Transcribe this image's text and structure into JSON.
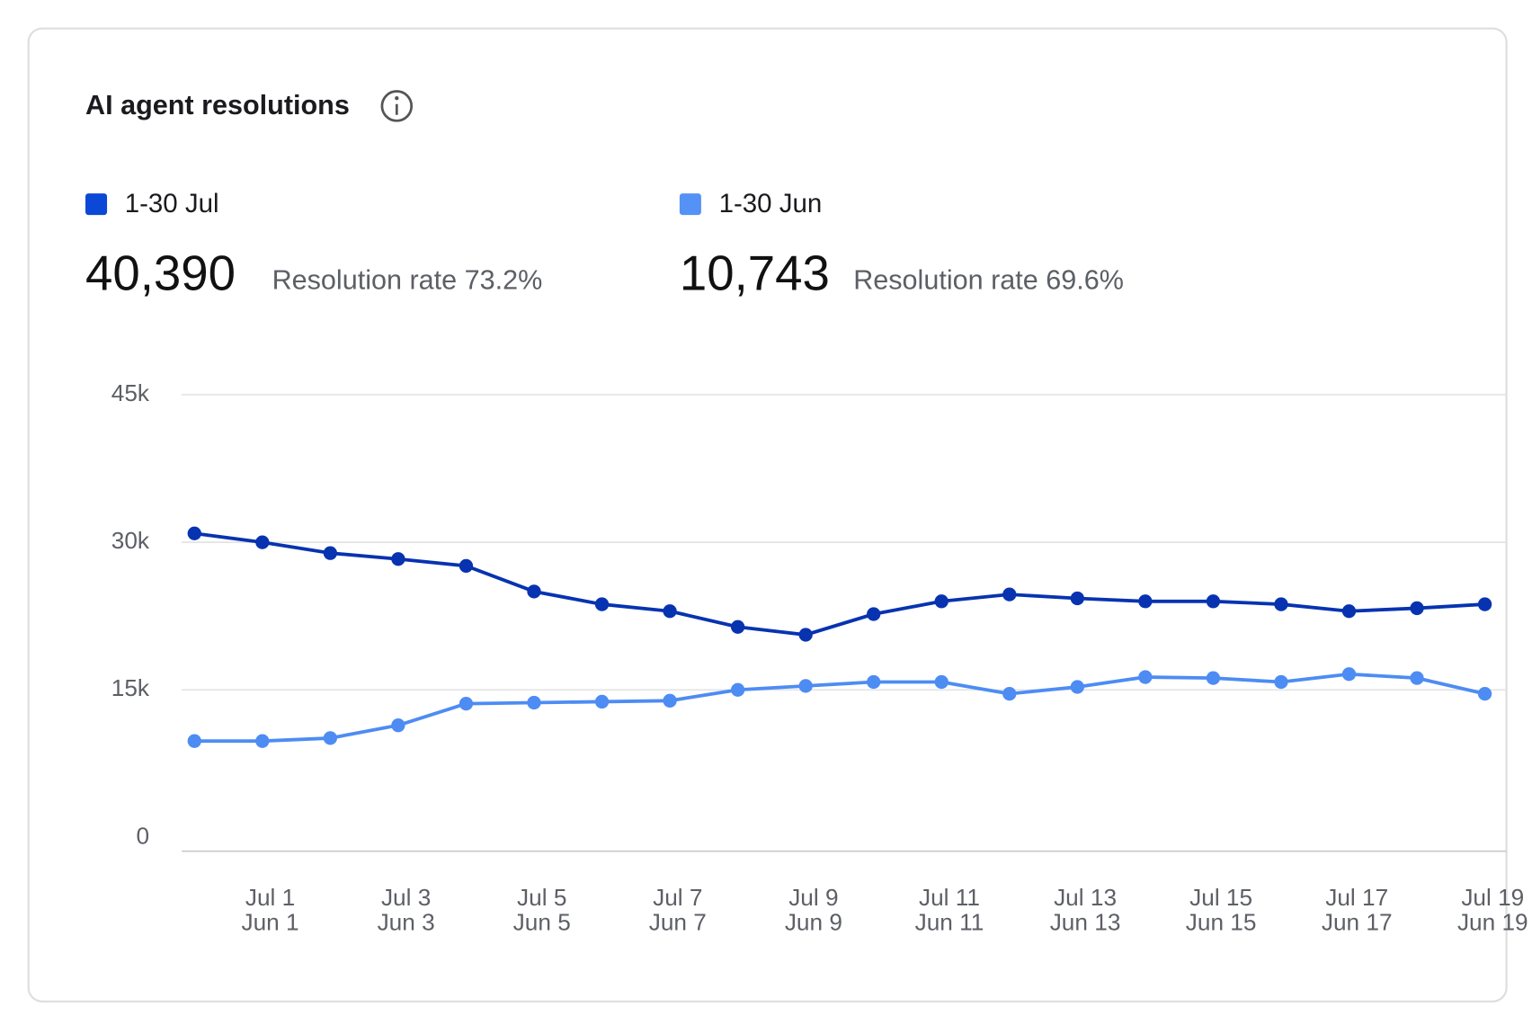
{
  "header": {
    "title": "AI agent resolutions"
  },
  "summary": [
    {
      "total": "40,390",
      "rate": "Resolution rate 73.2%"
    },
    {
      "total": "10,743",
      "rate": "Resolution rate 69.6%"
    }
  ],
  "chart_data": {
    "type": "line",
    "categories": [
      null,
      [
        "Jul 1",
        "Jun 1"
      ],
      null,
      [
        "Jul 3",
        "Jun 3"
      ],
      null,
      [
        "Jul 5",
        "Jun 5"
      ],
      null,
      [
        "Jul 7",
        "Jun 7"
      ],
      null,
      [
        "Jul 9",
        "Jun 9"
      ],
      null,
      [
        "Jul 11",
        "Jun 11"
      ],
      null,
      [
        "Jul 13",
        "Jun 13"
      ],
      null,
      [
        "Jul 15",
        "Jun 15"
      ],
      null,
      [
        "Jul 17",
        "Jun 17"
      ],
      null,
      [
        "Jul 19",
        "Jun 19"
      ]
    ],
    "series": [
      {
        "name": "1-30 Jul",
        "color": "#0733b0",
        "legend_color": "#0b48d6",
        "values": [
          30900,
          30000,
          28900,
          28300,
          27600,
          25000,
          23700,
          23000,
          21400,
          20600,
          22700,
          24000,
          24700,
          24300,
          24000,
          24000,
          23700,
          23000,
          23300,
          23700
        ]
      },
      {
        "name": "1-30 Jun",
        "color": "#4d8cf3",
        "legend_color": "#5592f5",
        "values": [
          9800,
          9800,
          10100,
          11400,
          13600,
          13700,
          13800,
          13900,
          15000,
          15400,
          15800,
          15800,
          14600,
          15300,
          16300,
          16200,
          15800,
          16600,
          16200,
          14600
        ]
      }
    ],
    "ylim": [
      0,
      45000
    ],
    "yticks": [
      0,
      {
        "value": 15000,
        "label": "15k"
      },
      {
        "value": 30000,
        "label": "30k"
      },
      {
        "value": 45000,
        "label": "45k"
      }
    ],
    "grid": true
  }
}
